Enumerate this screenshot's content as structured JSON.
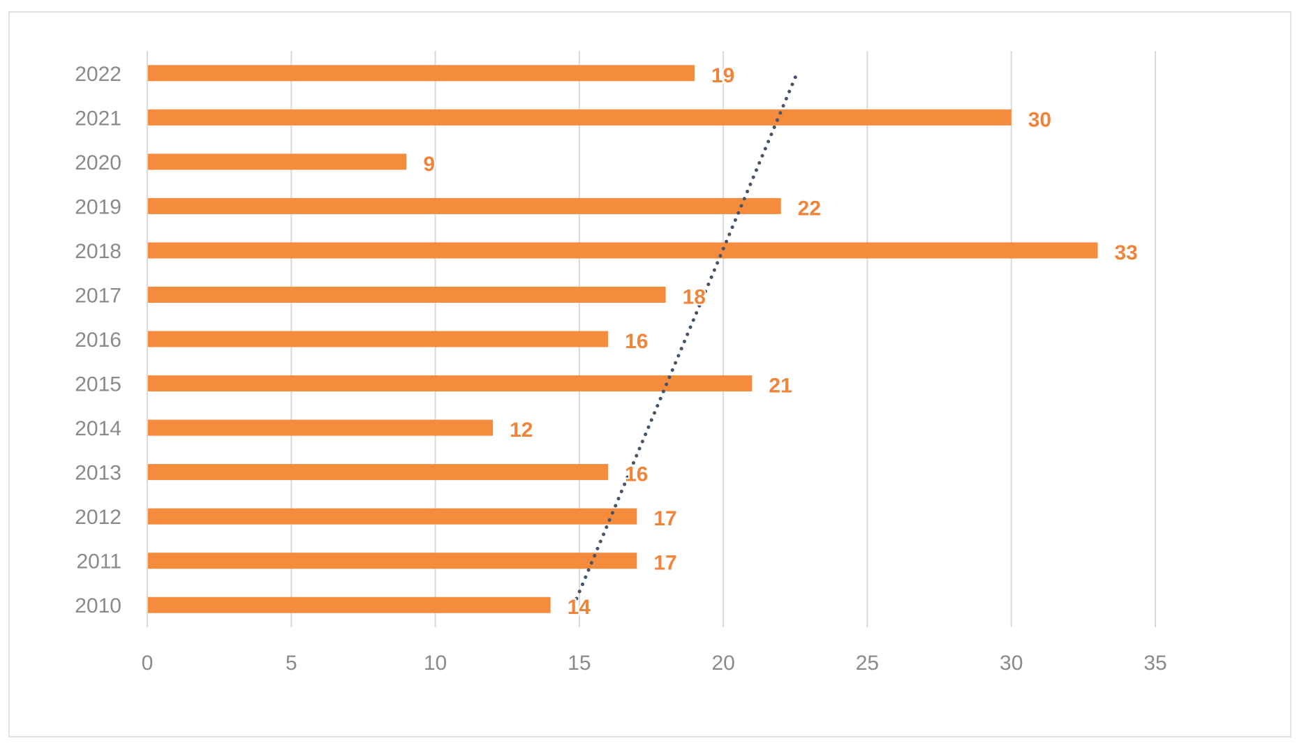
{
  "chart_data": {
    "type": "bar",
    "orientation": "horizontal",
    "title": "",
    "xlabel": "",
    "ylabel": "",
    "categories": [
      "2022",
      "2021",
      "2020",
      "2019",
      "2018",
      "2017",
      "2016",
      "2015",
      "2014",
      "2013",
      "2012",
      "2011",
      "2010"
    ],
    "values": [
      19,
      30,
      9,
      22,
      33,
      18,
      16,
      21,
      12,
      16,
      17,
      17,
      14
    ],
    "data_labels": [
      "19",
      "30",
      "9",
      "22",
      "33",
      "18",
      "16",
      "21",
      "12",
      "16",
      "17",
      "17",
      "14"
    ],
    "xlim": [
      0,
      35
    ],
    "x_ticks": [
      0,
      5,
      10,
      15,
      20,
      25,
      30,
      35
    ],
    "x_tick_labels": [
      "0",
      "5",
      "10",
      "15",
      "20",
      "25",
      "30",
      "35"
    ],
    "grid": "vertical",
    "legend": "none",
    "trendline": {
      "type": "linear",
      "style": "dotted",
      "start": {
        "category": "2010",
        "value": 14.8
      },
      "end": {
        "category": "2022",
        "value": 22.6
      }
    },
    "colors": {
      "bar": "#F58B3C",
      "label": "#F0843A",
      "trendline": "#44546A",
      "grid": "#D9D9D9",
      "axis_text": "#8A8A8A"
    }
  }
}
